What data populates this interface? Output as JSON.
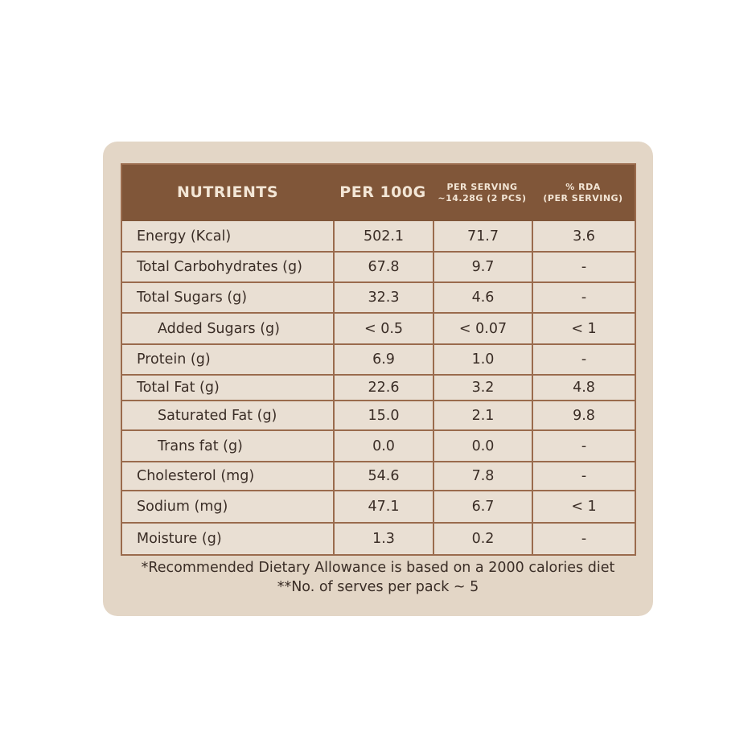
{
  "table": {
    "headers": {
      "nutrients": "NUTRiENTS",
      "per100g": "PER 100G",
      "perServing1": "PER SERViNG",
      "perServing2": "~14.28G (2 PCS)",
      "rda1": "% RDA",
      "rda2": "(PER SERViNG)"
    },
    "rows": [
      {
        "name": "Energy (Kcal)",
        "per100g": "502.1",
        "serving": "71.7",
        "rda": "3.6"
      },
      {
        "name": "Total Carbohydrates (g)",
        "per100g": "67.8",
        "serving": "9.7",
        "rda": "-"
      },
      {
        "name": "Total Sugars (g)",
        "per100g": "32.3",
        "serving": "4.6",
        "rda": "-"
      },
      {
        "name": "Added Sugars (g)",
        "per100g": "< 0.5",
        "serving": "< 0.07",
        "rda": "< 1"
      },
      {
        "name": "Protein (g)",
        "per100g": "6.9",
        "serving": "1.0",
        "rda": "-"
      },
      {
        "name": "Total Fat (g)",
        "per100g": "22.6",
        "serving": "3.2",
        "rda": "4.8"
      },
      {
        "name": "Saturated Fat (g)",
        "per100g": "15.0",
        "serving": "2.1",
        "rda": "9.8"
      },
      {
        "name": "Trans fat (g)",
        "per100g": "0.0",
        "serving": "0.0",
        "rda": "-"
      },
      {
        "name": "Cholesterol (mg)",
        "per100g": "54.6",
        "serving": "7.8",
        "rda": "-"
      },
      {
        "name": "Sodium (mg)",
        "per100g": "47.1",
        "serving": "6.7",
        "rda": "< 1"
      },
      {
        "name": "Moisture (g)",
        "per100g": "1.3",
        "serving": "0.2",
        "rda": "-"
      }
    ]
  },
  "footnotes": {
    "line1": "*Recommended Dietary Allowance is based on a 2000 calories diet",
    "line2": "**No. of serves per pack ~ 5"
  },
  "colors": {
    "card_bg": "#e3d6c6",
    "header_bg": "#805639",
    "border": "#9a6b4d",
    "text": "#3a2d26"
  }
}
